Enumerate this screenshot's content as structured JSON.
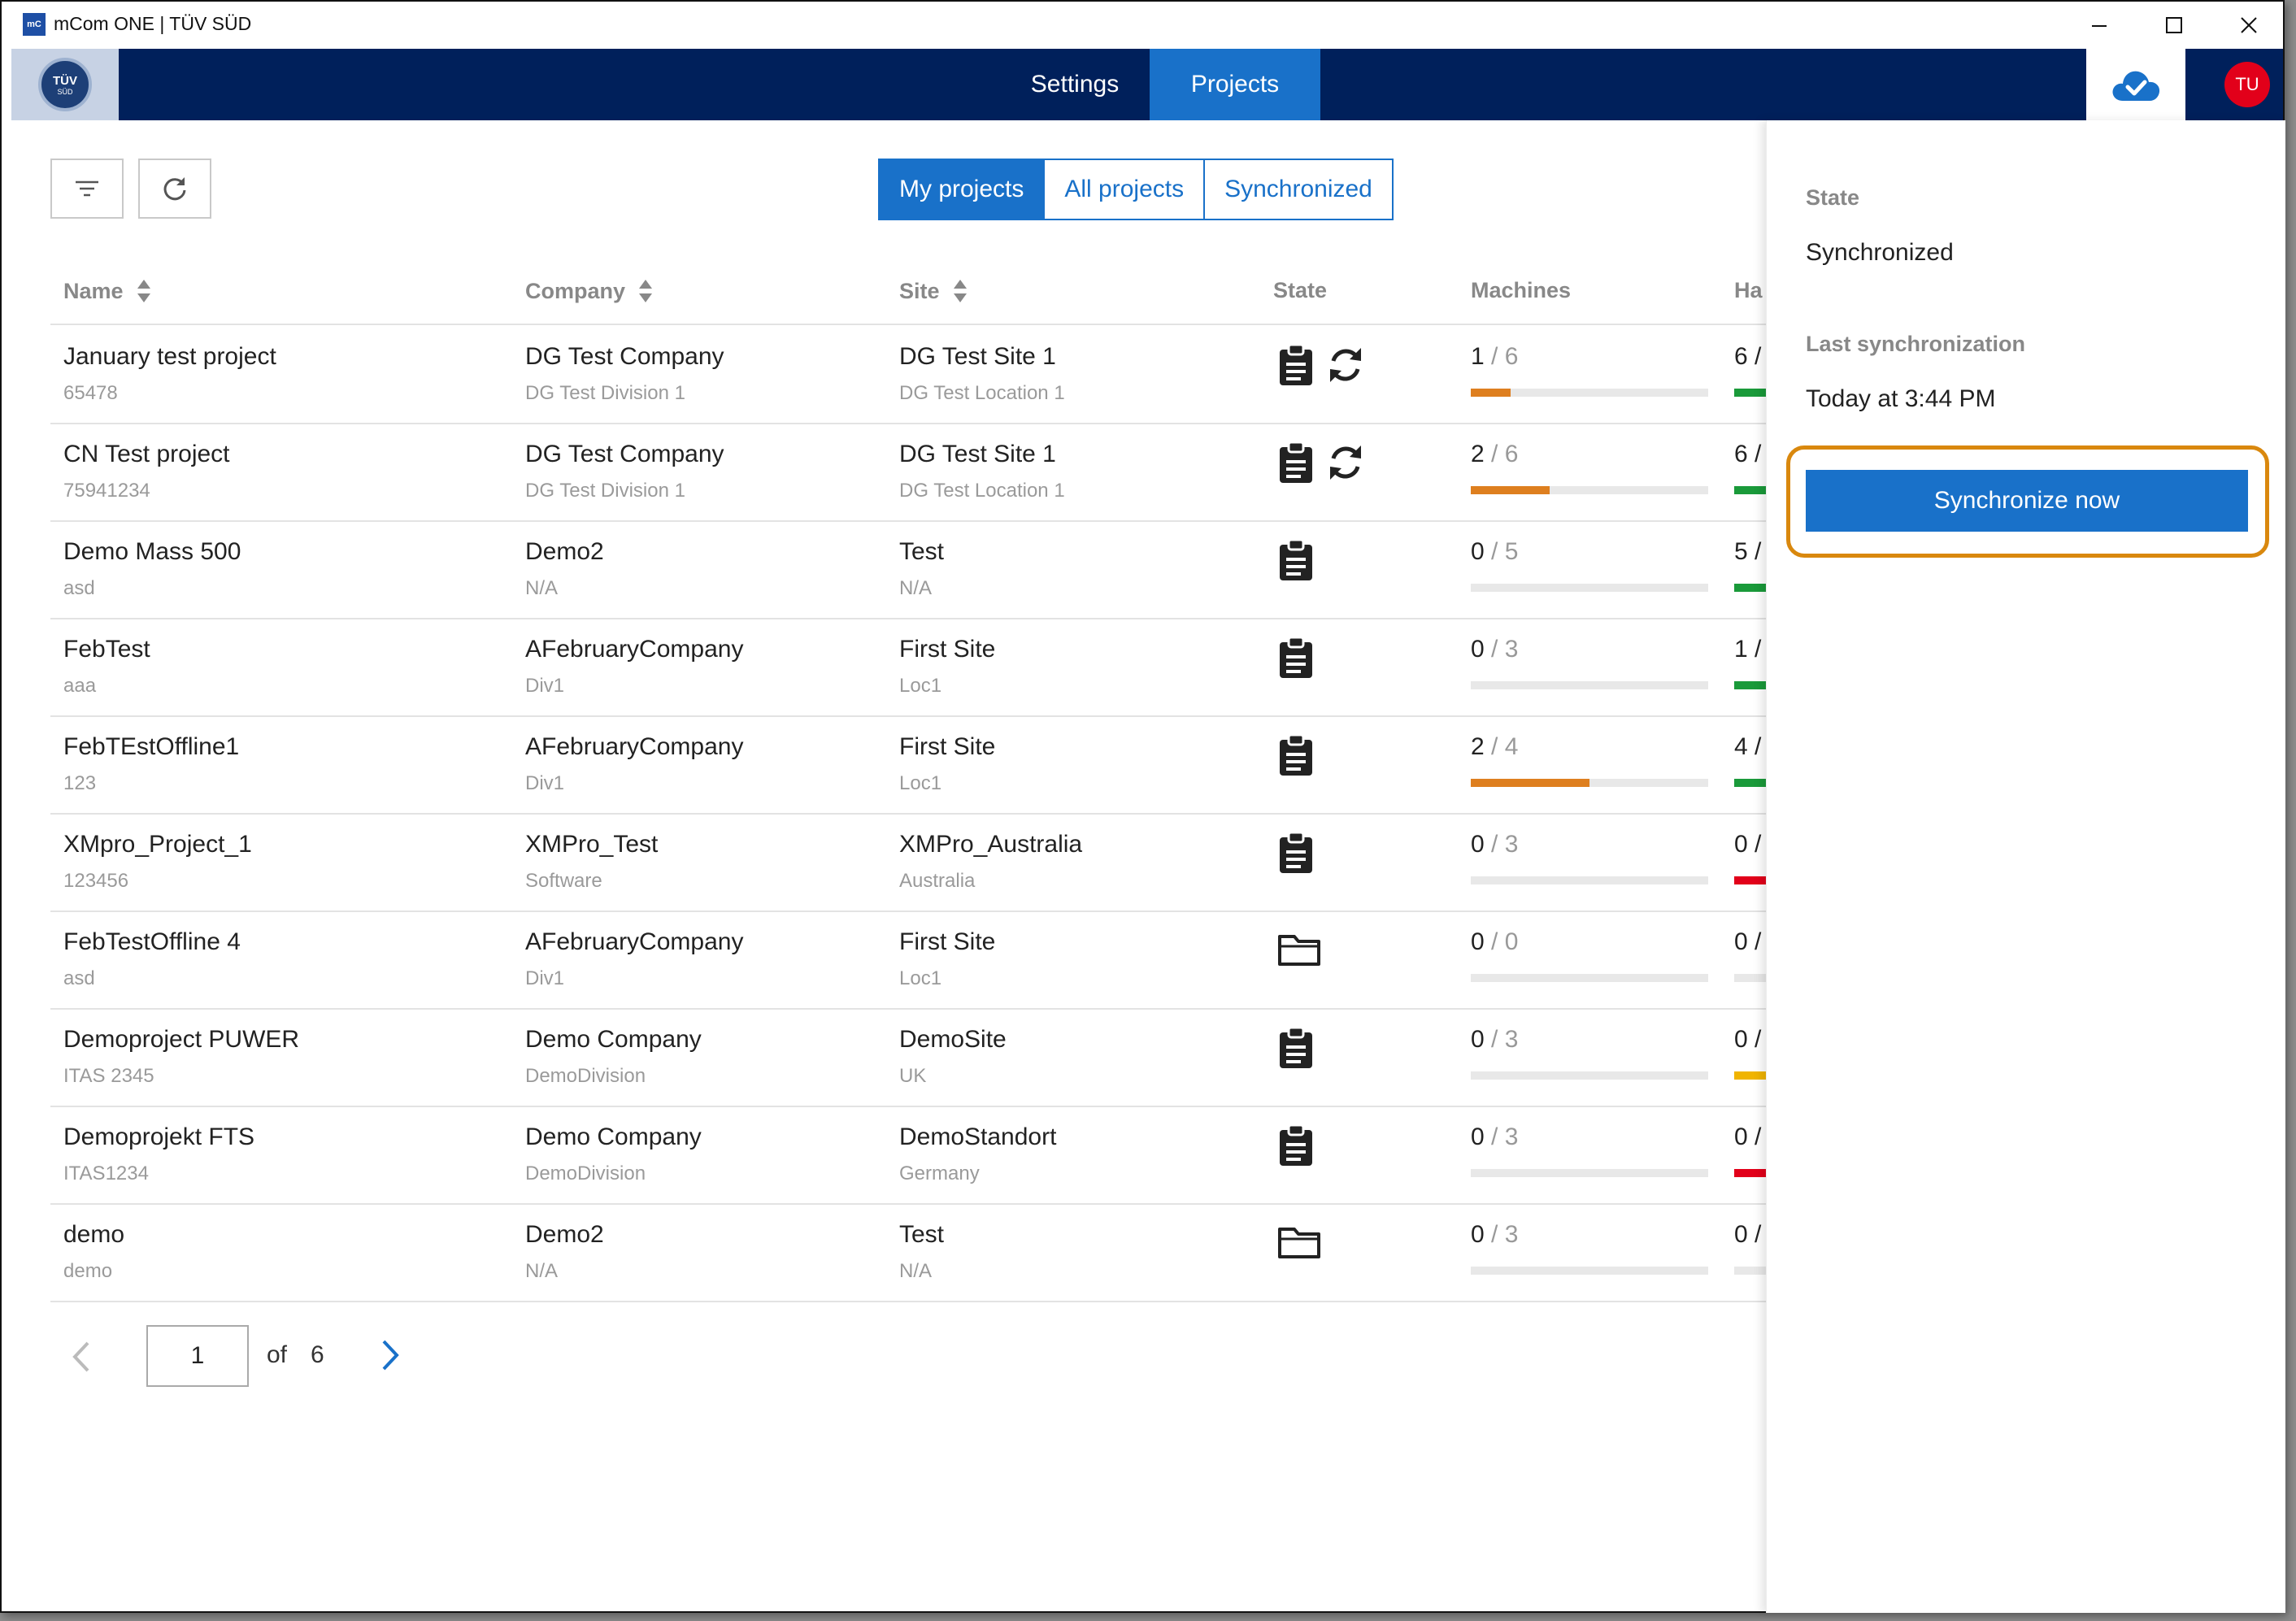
{
  "window": {
    "title": "mCom ONE | TÜV SÜD",
    "icon_text": "mC"
  },
  "header": {
    "logo_text": "TÜV",
    "logo_subtext": "SÜD",
    "tabs": [
      {
        "label": "Settings",
        "active": false
      },
      {
        "label": "Projects",
        "active": true
      }
    ],
    "cloud_status_icon": "cloud-check-icon",
    "avatar_initials": "TU"
  },
  "toolbar": {
    "filter_icon": "filter-icon",
    "refresh_icon": "refresh-icon",
    "segments": [
      {
        "label": "My projects",
        "active": true
      },
      {
        "label": "All projects",
        "active": false
      },
      {
        "label": "Synchronized",
        "active": false
      }
    ]
  },
  "table": {
    "columns": [
      "Name",
      "Company",
      "Site",
      "State",
      "Machines",
      "Ha"
    ],
    "rows": [
      {
        "name": "January test project",
        "name_sub": "65478",
        "company": "DG Test Company",
        "company_sub": "DG Test Division 1",
        "site": "DG Test Site 1",
        "site_sub": "DG Test Location 1",
        "state": "clipboard-sync",
        "machines_done": "1",
        "machines_total": "6",
        "machines_progress": 0.1667,
        "hazards_done": "6",
        "hazard_color": "#1a9a3a"
      },
      {
        "name": "CN Test project",
        "name_sub": "75941234",
        "company": "DG Test Company",
        "company_sub": "DG Test Division 1",
        "site": "DG Test Site 1",
        "site_sub": "DG Test Location 1",
        "state": "clipboard-sync",
        "machines_done": "2",
        "machines_total": "6",
        "machines_progress": 0.3333,
        "hazards_done": "6",
        "hazard_color": "#1a9a3a"
      },
      {
        "name": "Demo Mass 500",
        "name_sub": "asd",
        "company": "Demo2",
        "company_sub": "N/A",
        "site": "Test",
        "site_sub": "N/A",
        "state": "clipboard",
        "machines_done": "0",
        "machines_total": "5",
        "machines_progress": 0,
        "hazards_done": "5",
        "hazard_color": "#1a9a3a"
      },
      {
        "name": "FebTest",
        "name_sub": "aaa",
        "company": "AFebruaryCompany",
        "company_sub": "Div1",
        "site": "First Site",
        "site_sub": "Loc1",
        "state": "clipboard",
        "machines_done": "0",
        "machines_total": "3",
        "machines_progress": 0,
        "hazards_done": "1",
        "hazard_color": "#1a9a3a"
      },
      {
        "name": "FebTEstOffline1",
        "name_sub": "123",
        "company": "AFebruaryCompany",
        "company_sub": "Div1",
        "site": "First Site",
        "site_sub": "Loc1",
        "state": "clipboard",
        "machines_done": "2",
        "machines_total": "4",
        "machines_progress": 0.5,
        "hazards_done": "4",
        "hazard_color": "#1a9a3a"
      },
      {
        "name": "XMpro_Project_1",
        "name_sub": "123456",
        "company": "XMPro_Test",
        "company_sub": "Software",
        "site": "XMPro_Australia",
        "site_sub": "Australia",
        "state": "clipboard",
        "machines_done": "0",
        "machines_total": "3",
        "machines_progress": 0,
        "hazards_done": "0",
        "hazard_color": "#e2001a"
      },
      {
        "name": "FebTestOffline 4",
        "name_sub": "asd",
        "company": "AFebruaryCompany",
        "company_sub": "Div1",
        "site": "First Site",
        "site_sub": "Loc1",
        "state": "folder",
        "machines_done": "0",
        "machines_total": "0",
        "machines_progress": 0,
        "hazards_done": "0",
        "hazard_color": "#e8e8e8"
      },
      {
        "name": "Demoproject PUWER",
        "name_sub": "ITAS 2345",
        "company": "Demo Company",
        "company_sub": "DemoDivision",
        "site": "DemoSite",
        "site_sub": "UK",
        "state": "clipboard",
        "machines_done": "0",
        "machines_total": "3",
        "machines_progress": 0,
        "hazards_done": "0",
        "hazard_color": "#f0b400"
      },
      {
        "name": "Demoprojekt FTS",
        "name_sub": "ITAS1234",
        "company": "Demo Company",
        "company_sub": "DemoDivision",
        "site": "DemoStandort",
        "site_sub": "Germany",
        "state": "clipboard",
        "machines_done": "0",
        "machines_total": "3",
        "machines_progress": 0,
        "hazards_done": "0",
        "hazard_color": "#e2001a"
      },
      {
        "name": "demo",
        "name_sub": "demo",
        "company": "Demo2",
        "company_sub": "N/A",
        "site": "Test",
        "site_sub": "N/A",
        "state": "folder",
        "machines_done": "0",
        "machines_total": "3",
        "machines_progress": 0,
        "hazards_done": "0",
        "hazard_color": "#e8e8e8"
      }
    ]
  },
  "pagination": {
    "current_page": "1",
    "of_label": "of",
    "total_pages": "6"
  },
  "sync_panel": {
    "state_label": "State",
    "state_value": "Synchronized",
    "last_sync_label": "Last synchronization",
    "last_sync_value": "Today at 3:44 PM",
    "sync_button_label": "Synchronize now",
    "highlight_color": "#d9880e"
  },
  "colors": {
    "nav_bg": "#00205b",
    "accent": "#1971c9",
    "progress": "#de7f1f",
    "avatar": "#e2001a"
  }
}
